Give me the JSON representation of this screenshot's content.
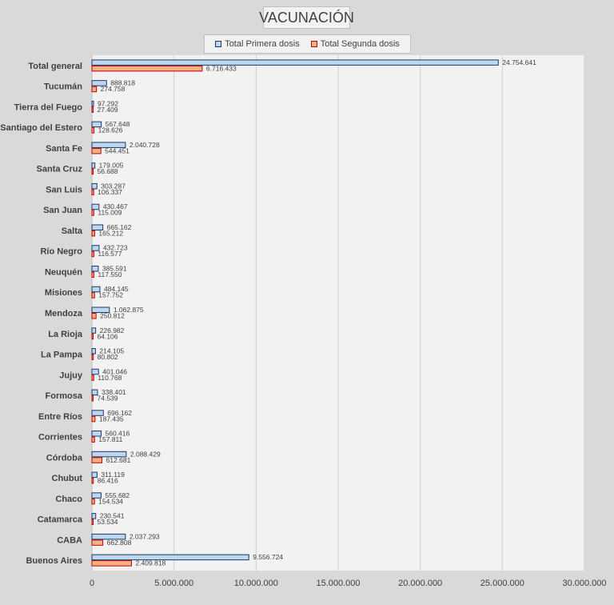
{
  "colors": {
    "series1_fill": "#bdd7ee",
    "series1_stroke": "#1f3864",
    "series2_fill": "#f4b183",
    "series2_stroke": "#c00000",
    "background": "#d9d9d9",
    "plot_background": "#f2f2f2"
  },
  "chart_data": {
    "type": "bar",
    "orientation": "horizontal",
    "title": "VACUNACIÓN",
    "legend_position": "top",
    "grid": true,
    "xlim": [
      0,
      30000000
    ],
    "ticks": [
      0,
      5000000,
      10000000,
      15000000,
      20000000,
      25000000,
      30000000
    ],
    "tick_labels": [
      "0",
      "5.000.000",
      "10.000.000",
      "15.000.000",
      "20.000.000",
      "25.000.000",
      "30.000.000"
    ],
    "categories": [
      "Total general",
      "Tucumán",
      "Tierra del Fuego",
      "Santiago del Estero",
      "Santa Fe",
      "Santa Cruz",
      "San Luis",
      "San Juan",
      "Salta",
      "Río Negro",
      "Neuquén",
      "Misiones",
      "Mendoza",
      "La Rioja",
      "La Pampa",
      "Jujuy",
      "Formosa",
      "Entre Ríos",
      "Corrientes",
      "Córdoba",
      "Chubut",
      "Chaco",
      "Catamarca",
      "CABA",
      "Buenos Aires"
    ],
    "series": [
      {
        "name": "Total Primera dosis",
        "values": [
          24754641,
          888818,
          97292,
          567648,
          2040728,
          179005,
          303287,
          430467,
          665162,
          432723,
          385591,
          484145,
          1062875,
          226982,
          214105,
          401046,
          338401,
          696162,
          560416,
          2088429,
          311119,
          555682,
          230541,
          2037293,
          9556724
        ],
        "labels": [
          "24.754.641",
          "888.818",
          "97.292",
          "567.648",
          "2.040.728",
          "179.005",
          "303.287",
          "430.467",
          "665.162",
          "432.723",
          "385.591",
          "484.145",
          "1.062.875",
          "226.982",
          "214.105",
          "401.046",
          "338.401",
          "696.162",
          "560.416",
          "2.088.429",
          "311.119",
          "555.682",
          "230.541",
          "2.037.293",
          "9.556.724"
        ]
      },
      {
        "name": "Total Segunda dosis",
        "values": [
          6716433,
          274758,
          27409,
          128626,
          544451,
          56688,
          106337,
          115009,
          165212,
          116577,
          117550,
          157752,
          250812,
          64106,
          80802,
          110768,
          74539,
          187435,
          157811,
          612681,
          86416,
          154534,
          53534,
          662808,
          2409818
        ],
        "labels": [
          "6.716.433",
          "274.758",
          "27.409",
          "128.626",
          "544.451",
          "56.688",
          "106.337",
          "115.009",
          "165.212",
          "116.577",
          "117.550",
          "157.752",
          "250.812",
          "64.106",
          "80.802",
          "110.768",
          "74.539",
          "187.435",
          "157.811",
          "612.681",
          "86.416",
          "154.534",
          "53.534",
          "662.808",
          "2.409.818"
        ]
      }
    ]
  }
}
